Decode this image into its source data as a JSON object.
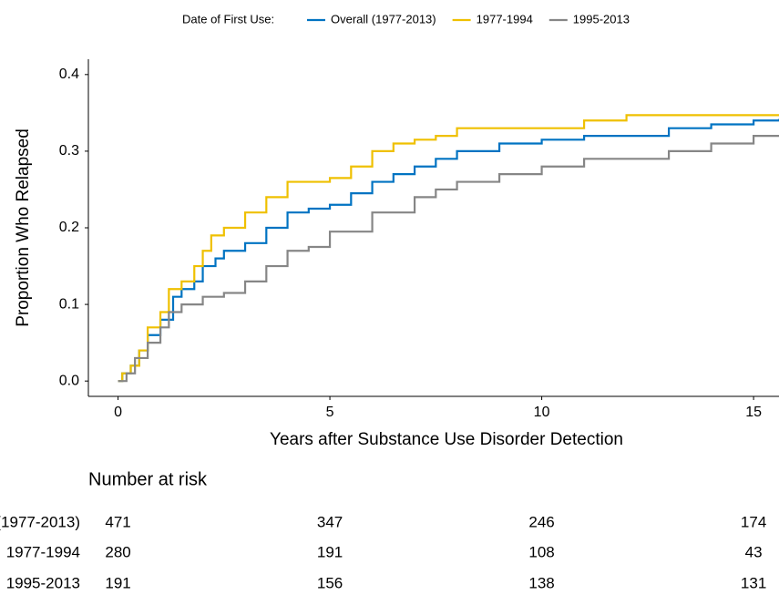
{
  "chart_data": {
    "type": "step",
    "legend_title": "Date of First Use:",
    "x_label": "Years after Substance Use Disorder Detection",
    "y_label": "Proportion Who Relapsed",
    "xlim": [
      -0.7,
      15.6
    ],
    "ylim": [
      -0.02,
      0.42
    ],
    "xticks": [
      0,
      5,
      10,
      15
    ],
    "yticks": [
      {
        "value": 0,
        "label": "0.0"
      },
      0.1,
      0.2,
      0.3,
      0.4
    ],
    "series": [
      {
        "name": "Overall (1977-2013)",
        "color": "#0073C2",
        "x": [
          0,
          0.1,
          0.3,
          0.5,
          0.7,
          1.0,
          1.3,
          1.5,
          1.8,
          2.0,
          2.3,
          2.5,
          3.0,
          3.5,
          4.0,
          4.5,
          5.0,
          5.5,
          6.0,
          6.5,
          7.0,
          7.5,
          8.0,
          9.0,
          10.0,
          11.0,
          12.0,
          13.0,
          14.0,
          15.0,
          15.6
        ],
        "values": [
          0,
          0.01,
          0.02,
          0.04,
          0.06,
          0.08,
          0.11,
          0.12,
          0.13,
          0.15,
          0.16,
          0.17,
          0.18,
          0.2,
          0.22,
          0.225,
          0.23,
          0.245,
          0.26,
          0.27,
          0.28,
          0.29,
          0.3,
          0.31,
          0.315,
          0.32,
          0.32,
          0.33,
          0.335,
          0.34,
          0.342
        ]
      },
      {
        "name": "1977-1994",
        "color": "#EFC000",
        "x": [
          0,
          0.1,
          0.3,
          0.5,
          0.7,
          1.0,
          1.2,
          1.5,
          1.8,
          2.0,
          2.2,
          2.5,
          3.0,
          3.5,
          4.0,
          5.0,
          5.5,
          6.0,
          6.5,
          7.0,
          7.5,
          8.0,
          10.0,
          11.0,
          12.0,
          15.6
        ],
        "values": [
          0,
          0.01,
          0.02,
          0.04,
          0.07,
          0.09,
          0.12,
          0.13,
          0.15,
          0.17,
          0.19,
          0.2,
          0.22,
          0.24,
          0.26,
          0.265,
          0.28,
          0.3,
          0.31,
          0.315,
          0.32,
          0.33,
          0.33,
          0.34,
          0.347,
          0.347
        ]
      },
      {
        "name": "1995-2013",
        "color": "#868686",
        "x": [
          0,
          0.2,
          0.4,
          0.7,
          1.0,
          1.2,
          1.5,
          2.0,
          2.5,
          3.0,
          3.5,
          4.0,
          4.5,
          5.0,
          6.0,
          7.0,
          7.5,
          8.0,
          9.0,
          10.0,
          11.0,
          12.0,
          13.0,
          14.0,
          15.0,
          15.6
        ],
        "values": [
          0,
          0.01,
          0.03,
          0.05,
          0.07,
          0.09,
          0.1,
          0.11,
          0.115,
          0.13,
          0.15,
          0.17,
          0.175,
          0.195,
          0.22,
          0.24,
          0.25,
          0.26,
          0.27,
          0.28,
          0.29,
          0.29,
          0.3,
          0.31,
          0.32,
          0.32
        ]
      }
    ],
    "risk_table": {
      "title": "Number at risk",
      "times": [
        0,
        5,
        10,
        15
      ],
      "rows": [
        [
          471,
          347,
          246,
          174
        ],
        [
          280,
          191,
          108,
          43
        ],
        [
          191,
          156,
          138,
          131
        ]
      ]
    }
  }
}
